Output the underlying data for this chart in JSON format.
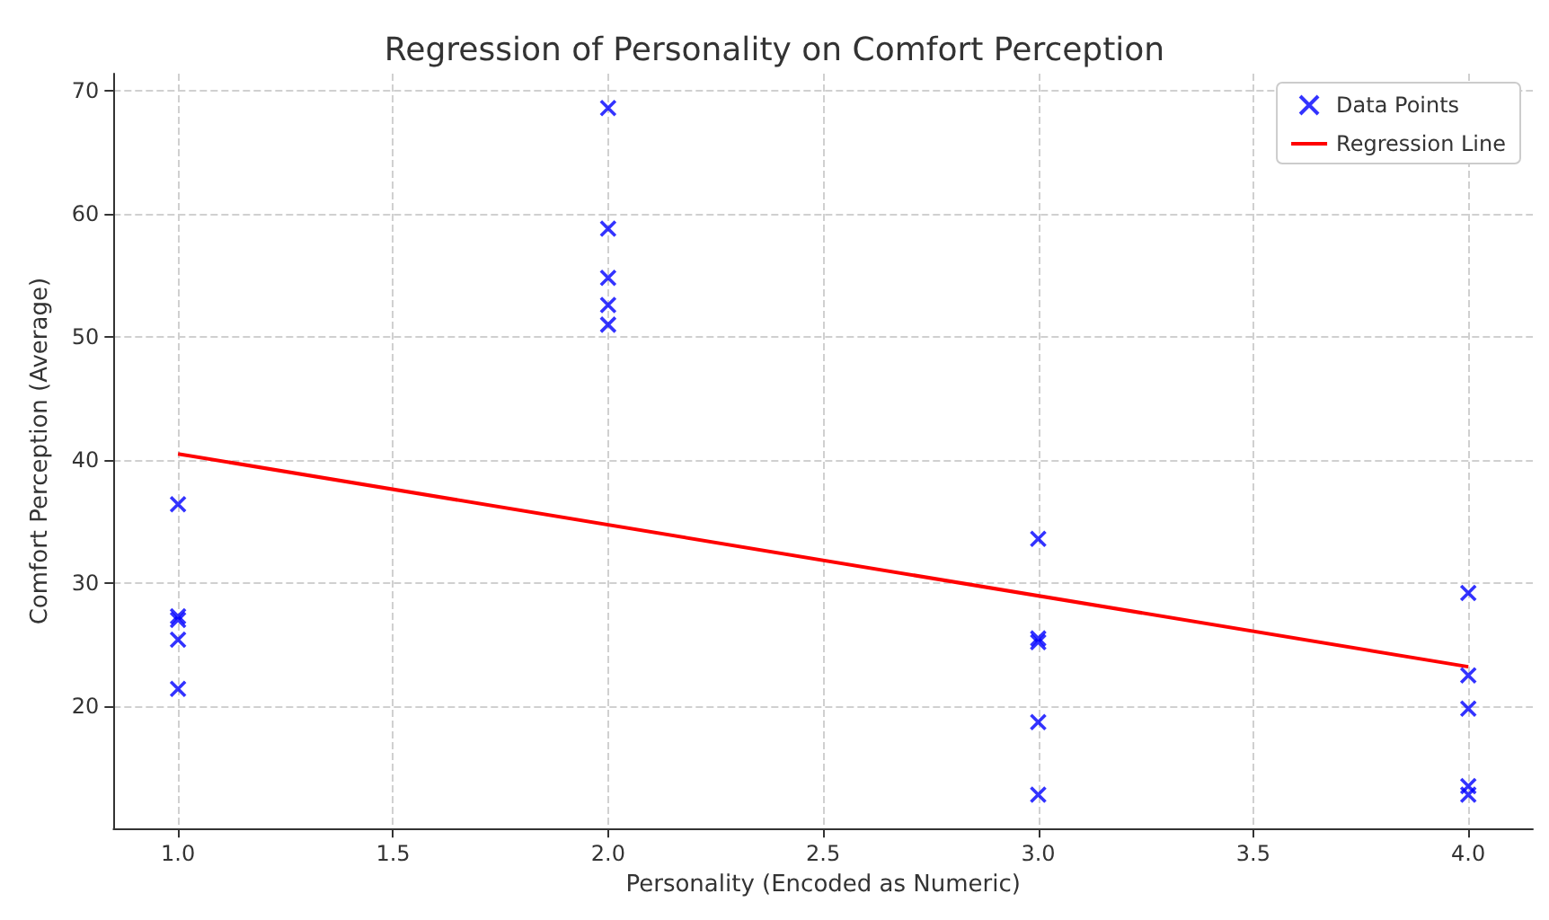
{
  "chart_data": {
    "type": "scatter",
    "title": "Regression of Personality on Comfort Perception",
    "xlabel": "Personality (Encoded as Numeric)",
    "ylabel": "Comfort Perception (Average)",
    "xlim": [
      0.85,
      4.15
    ],
    "ylim": [
      10.05,
      71.4
    ],
    "xticks": [
      {
        "value": 1,
        "label": "1.0"
      },
      {
        "value": 1.5,
        "label": "1.5"
      },
      {
        "value": 2,
        "label": "2.0"
      },
      {
        "value": 2.5,
        "label": "2.5"
      },
      {
        "value": 3,
        "label": "3.0"
      },
      {
        "value": 3.5,
        "label": "3.5"
      },
      {
        "value": 4,
        "label": "4.0"
      }
    ],
    "yticks": [
      20,
      30,
      40,
      50,
      60,
      70
    ],
    "grid": true,
    "legend": "top right",
    "series": [
      {
        "name": "Data Points",
        "marker": "cross",
        "color": "#0000ff",
        "x": [
          1,
          1,
          1,
          1,
          1,
          2,
          2,
          2,
          2,
          2,
          3,
          3,
          3,
          3,
          3,
          4,
          4,
          4,
          4,
          4
        ],
        "values": [
          36.4,
          27.3,
          27.0,
          25.4,
          21.4,
          68.6,
          58.8,
          54.8,
          52.6,
          51.0,
          33.6,
          25.5,
          25.2,
          18.7,
          12.8,
          29.2,
          22.5,
          19.8,
          13.5,
          12.8
        ]
      },
      {
        "name": "Regression Line",
        "type": "line",
        "marker": "none",
        "color": "#ff0000",
        "x": [
          1,
          4
        ],
        "values": [
          40.5,
          23.2
        ]
      }
    ]
  }
}
